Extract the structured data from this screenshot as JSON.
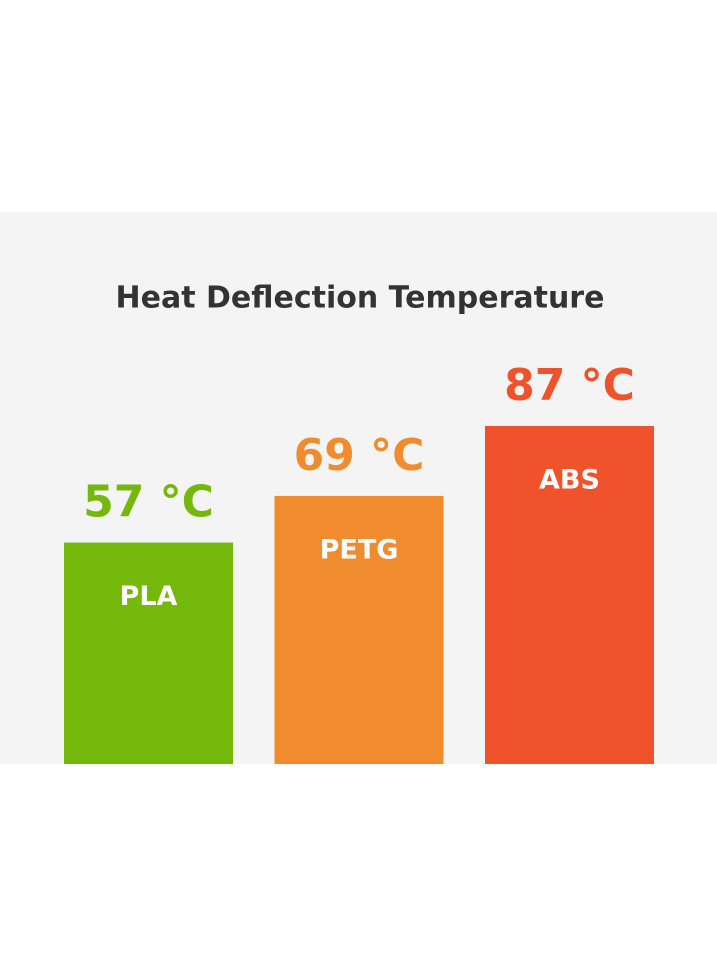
{
  "chart_data": {
    "type": "bar",
    "title": "Heat Deflection Temperature",
    "categories": [
      "PLA",
      "PETG",
      "ABS"
    ],
    "values": [
      57,
      69,
      87
    ],
    "value_labels": [
      "57 °C",
      "69 °C",
      "87 °C"
    ],
    "colors": [
      "#74b80b",
      "#f08c2e",
      "#f0522c"
    ]
  }
}
